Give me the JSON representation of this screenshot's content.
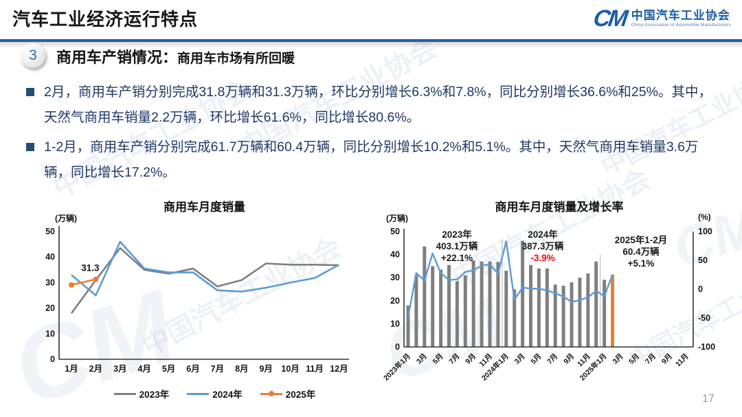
{
  "header": {
    "title": "汽车工业经济运行特点",
    "logo": {
      "monogram": "CM",
      "org_cn": "中国汽车工业协会",
      "org_en": "China Association of Automobile Manufacturers"
    }
  },
  "section": {
    "badge": "3",
    "heading": "商用车产销情况：",
    "subheading": "商用车市场有所回暖"
  },
  "bullets": [
    "2月，商用车产销分别完成31.8万辆和31.3万辆，环比分别增长6.3%和7.8%，同比分别增长36.6%和25%。其中，天然气商用车销量2.2万辆，环比增长61.6%，同比增长80.6%。",
    "1-2月，商用车产销分别完成61.7万辆和60.4万辆，同比分别增长10.2%和5.1%。其中，天然气商用车销量3.6万辆，同比增长17.2%。"
  ],
  "watermark": {
    "text": "中国汽车工业协会",
    "monogram": "CM"
  },
  "page_number": "17",
  "chart_data": [
    {
      "type": "line",
      "title": "商用车月度销量",
      "ylabel": "(万辆)",
      "ylim": [
        0,
        50
      ],
      "yticks": [
        0,
        10,
        20,
        30,
        40,
        50
      ],
      "categories": [
        "1月",
        "2月",
        "3月",
        "4月",
        "5月",
        "6月",
        "7月",
        "8月",
        "9月",
        "10月",
        "11月",
        "12月"
      ],
      "series": [
        {
          "name": "2023年",
          "color": "#7F7F7F",
          "values": [
            18,
            31,
            43.5,
            35,
            33.5,
            35.5,
            28.5,
            31,
            37.5,
            37,
            37,
            36.8
          ]
        },
        {
          "name": "2024年",
          "color": "#5B9BD5",
          "values": [
            33,
            25,
            46,
            35.5,
            34,
            34,
            27,
            26.5,
            28,
            30,
            31.8,
            37
          ]
        },
        {
          "name": "2025年",
          "color": "#ED7D31",
          "values": [
            29.1,
            31.3
          ],
          "markers": true
        }
      ],
      "annotation": {
        "text": "31.3",
        "series": "2025年",
        "category": "2月",
        "value": 31.3
      },
      "legend_position": "bottom",
      "grid": false
    },
    {
      "type": "bar+line",
      "title": "商用车月度销量及增长率",
      "left_axis": {
        "label": "(万辆)",
        "lim": [
          0,
          50
        ],
        "ticks": [
          0,
          10,
          20,
          30,
          40,
          50
        ]
      },
      "right_axis": {
        "label": "(%)",
        "lim": [
          -100,
          100
        ],
        "ticks": [
          100,
          50,
          0,
          -50,
          -100
        ]
      },
      "total_slots": 35,
      "x_tick_labels": [
        "2023年1月",
        "3月",
        "5月",
        "7月",
        "9月",
        "11月",
        "2024年1月",
        "3月",
        "5月",
        "7月",
        "9月",
        "11月",
        "2025年1月",
        "3月",
        "5月",
        "7月",
        "9月",
        "11月"
      ],
      "year_dividers": [
        {
          "slot": 12,
          "height": 47
        },
        {
          "slot": 24,
          "height": 40
        }
      ],
      "bars": {
        "name": "月度销量",
        "color": "#7F7F7F",
        "highlight_last_color": "#ED7D31",
        "values": [
          18,
          31,
          43.5,
          35,
          33.5,
          35.5,
          28.5,
          31,
          37.5,
          37,
          37,
          36.8,
          33,
          25,
          46,
          35.5,
          34,
          34,
          27,
          26.5,
          28,
          30,
          31.8,
          37,
          29.1,
          31.3
        ]
      },
      "line": {
        "name": "增长率",
        "color": "#5B9BD5",
        "values": [
          -48,
          28,
          15,
          62,
          28,
          16,
          17,
          30,
          33,
          41,
          43,
          27,
          83,
          -18,
          3,
          1,
          1,
          -2,
          -7,
          -13,
          -22,
          -19,
          -14,
          -3,
          -12,
          25
        ]
      },
      "annotations": [
        {
          "lines": [
            "2023年",
            "403.1万辆",
            "+22.1%"
          ],
          "accent_index": -1,
          "accent_color": "#FF0000"
        },
        {
          "lines": [
            "2024年",
            "387.3万辆",
            "-3.9%"
          ],
          "accent_index": 2,
          "accent_color": "#FF0000"
        },
        {
          "lines": [
            "2025年1-2月",
            "60.4万辆",
            "+5.1%"
          ],
          "accent_index": -1,
          "accent_color": "#FF0000"
        }
      ],
      "grid": false
    }
  ]
}
